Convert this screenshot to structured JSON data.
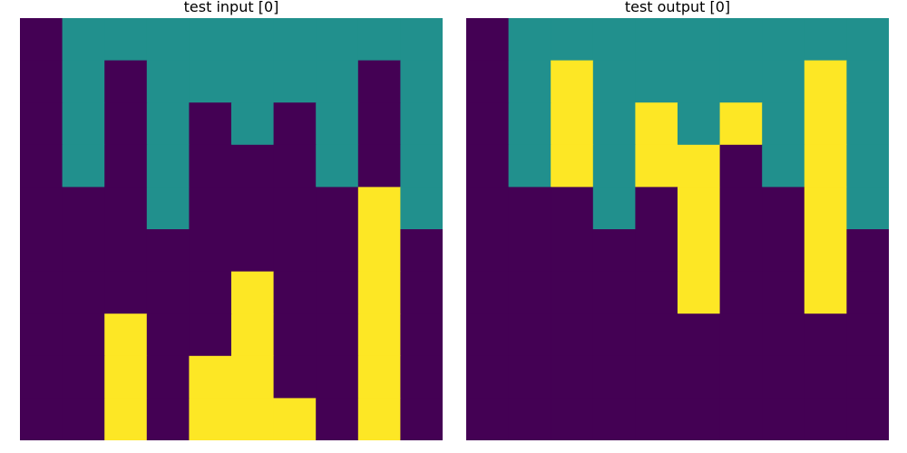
{
  "palette": {
    "0": "#440154",
    "1": "#21908d",
    "2": "#fde725"
  },
  "chart_data": [
    {
      "type": "heatmap",
      "title": "test input [0]",
      "rows": 10,
      "cols": 10,
      "grid": [
        [
          0,
          1,
          1,
          1,
          1,
          1,
          1,
          1,
          1,
          1
        ],
        [
          0,
          1,
          0,
          1,
          1,
          1,
          1,
          1,
          0,
          1
        ],
        [
          0,
          1,
          0,
          1,
          0,
          1,
          0,
          1,
          0,
          1
        ],
        [
          0,
          1,
          0,
          1,
          0,
          0,
          0,
          1,
          0,
          1
        ],
        [
          0,
          0,
          0,
          1,
          0,
          0,
          0,
          0,
          2,
          1
        ],
        [
          0,
          0,
          0,
          0,
          0,
          0,
          0,
          0,
          2,
          0
        ],
        [
          0,
          0,
          0,
          0,
          0,
          2,
          0,
          0,
          2,
          0
        ],
        [
          0,
          0,
          2,
          0,
          0,
          2,
          0,
          0,
          2,
          0
        ],
        [
          0,
          0,
          2,
          0,
          2,
          2,
          0,
          0,
          2,
          0
        ],
        [
          0,
          0,
          2,
          0,
          2,
          2,
          2,
          0,
          2,
          0
        ]
      ]
    },
    {
      "type": "heatmap",
      "title": "test output [0]",
      "rows": 10,
      "cols": 10,
      "grid": [
        [
          0,
          1,
          1,
          1,
          1,
          1,
          1,
          1,
          1,
          1
        ],
        [
          0,
          1,
          2,
          1,
          1,
          1,
          1,
          1,
          2,
          1
        ],
        [
          0,
          1,
          2,
          1,
          2,
          1,
          2,
          1,
          2,
          1
        ],
        [
          0,
          1,
          2,
          1,
          2,
          2,
          0,
          1,
          2,
          1
        ],
        [
          0,
          0,
          0,
          1,
          0,
          2,
          0,
          0,
          2,
          1
        ],
        [
          0,
          0,
          0,
          0,
          0,
          2,
          0,
          0,
          2,
          0
        ],
        [
          0,
          0,
          0,
          0,
          0,
          2,
          0,
          0,
          2,
          0
        ],
        [
          0,
          0,
          0,
          0,
          0,
          0,
          0,
          0,
          0,
          0
        ],
        [
          0,
          0,
          0,
          0,
          0,
          0,
          0,
          0,
          0,
          0
        ],
        [
          0,
          0,
          0,
          0,
          0,
          0,
          0,
          0,
          0,
          0
        ]
      ]
    }
  ]
}
